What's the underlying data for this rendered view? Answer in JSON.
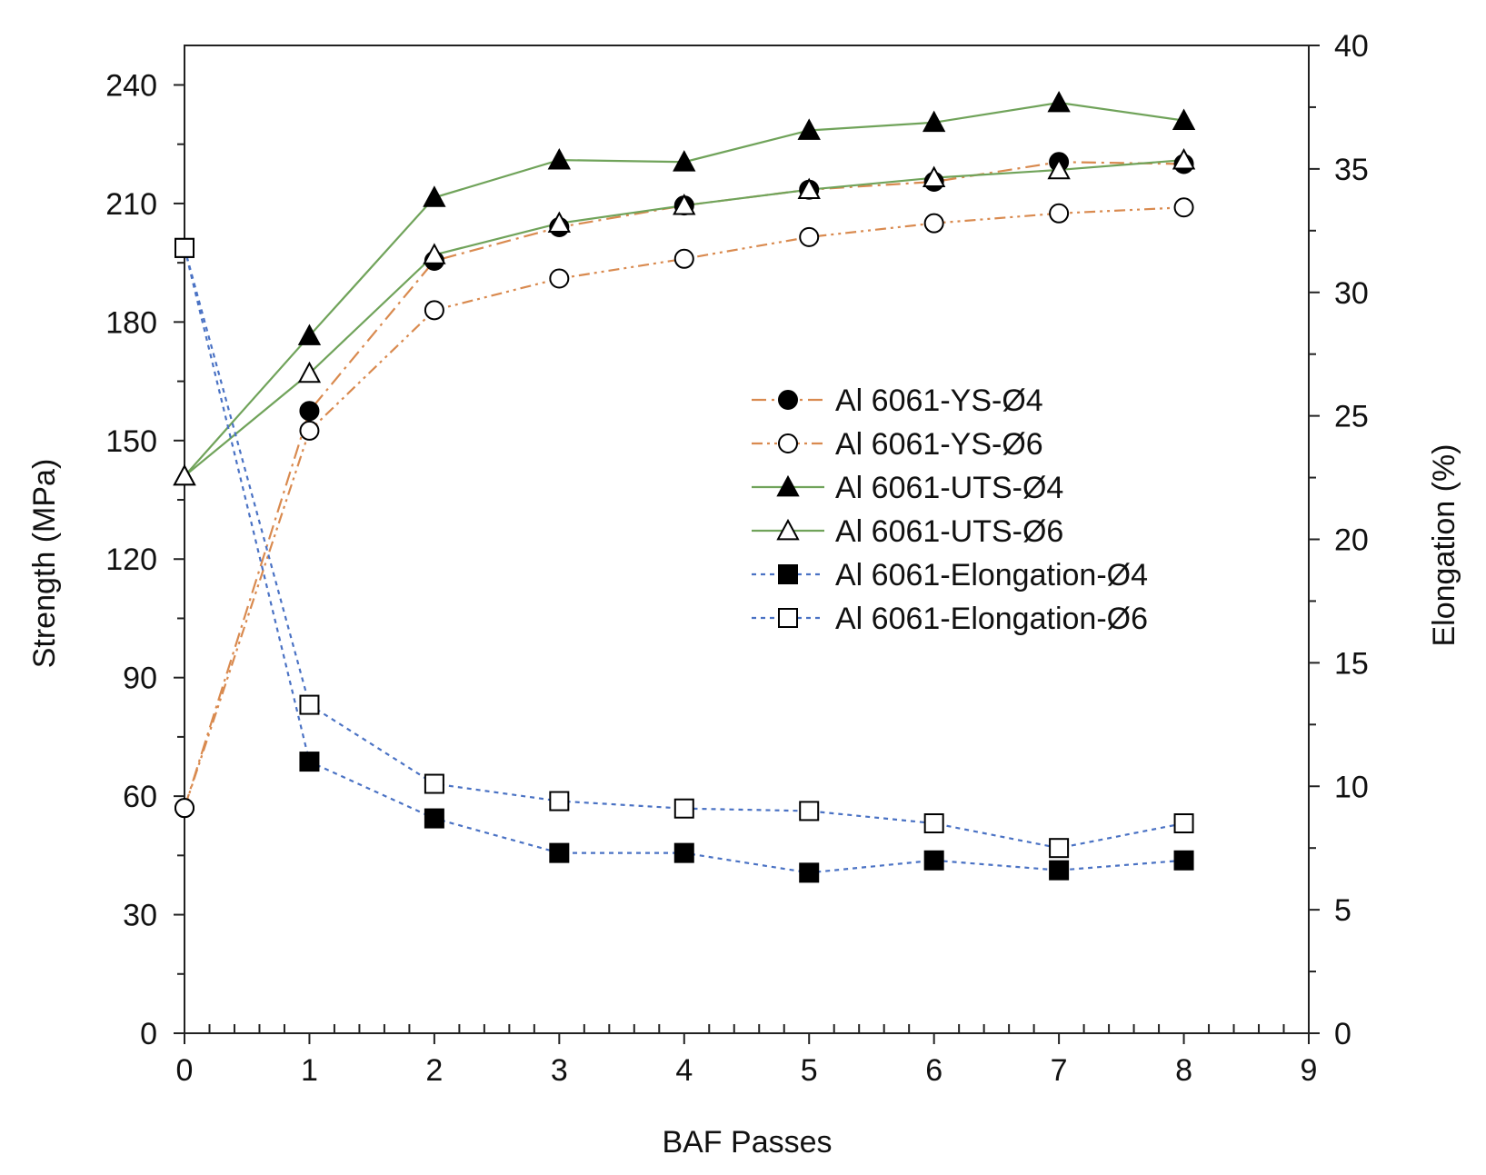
{
  "chart_data": {
    "type": "line",
    "xlabel": "BAF Passes",
    "ylabel": "Strength (MPa)",
    "y2label": "Elongation (%)",
    "xlim": [
      0,
      9
    ],
    "ylim": [
      0,
      250
    ],
    "y2lim": [
      0,
      40
    ],
    "xticks": [
      "0",
      "1",
      "2",
      "3",
      "4",
      "5",
      "6",
      "7",
      "8",
      "9"
    ],
    "yticks": [
      "0",
      "30",
      "60",
      "90",
      "120",
      "150",
      "180",
      "210",
      "240"
    ],
    "y2ticks": [
      "0",
      "5",
      "10",
      "15",
      "20",
      "25",
      "30",
      "35",
      "40"
    ],
    "grid": false,
    "legend_position": "center-right",
    "series": [
      {
        "name": "Al 6061-YS-Ø4",
        "axis": "left",
        "color": "#d98a4f",
        "dash": "dash-dot",
        "marker": "circle-filled",
        "x": [
          0,
          1,
          2,
          3,
          4,
          5,
          6,
          7,
          8
        ],
        "y": [
          57,
          157.5,
          195.5,
          204,
          209.5,
          213.5,
          215.5,
          220.5,
          220
        ]
      },
      {
        "name": "Al 6061-YS-Ø6",
        "axis": "left",
        "color": "#d98a4f",
        "dash": "dash-dot-dot",
        "marker": "circle-open",
        "x": [
          0,
          1,
          2,
          3,
          4,
          5,
          6,
          7,
          8
        ],
        "y": [
          57,
          152.5,
          183,
          191,
          196,
          201.5,
          205,
          207.5,
          209
        ]
      },
      {
        "name": "Al 6061-UTS-Ø4",
        "axis": "left",
        "color": "#70a35a",
        "dash": "solid",
        "marker": "triangle-filled",
        "x": [
          0,
          1,
          2,
          3,
          4,
          5,
          6,
          7,
          8
        ],
        "y": [
          141,
          176.5,
          211.5,
          221,
          220.5,
          228.5,
          230.5,
          235.5,
          231
        ]
      },
      {
        "name": "Al 6061-UTS-Ø6",
        "axis": "left",
        "color": "#70a35a",
        "dash": "solid",
        "marker": "triangle-open",
        "x": [
          0,
          1,
          2,
          3,
          4,
          5,
          6,
          7,
          8
        ],
        "y": [
          141,
          167,
          197,
          205,
          209.5,
          213.5,
          216.5,
          218.5,
          221
        ]
      },
      {
        "name": "Al 6061-Elongation-Ø4",
        "axis": "right",
        "color": "#4a72c4",
        "dash": "dashed",
        "marker": "square-filled",
        "x": [
          0,
          1,
          2,
          3,
          4,
          5,
          6,
          7,
          8
        ],
        "y": [
          31.8,
          11.0,
          8.7,
          7.3,
          7.3,
          6.5,
          7.0,
          6.6,
          7.0
        ]
      },
      {
        "name": "Al 6061-Elongation-Ø6",
        "axis": "right",
        "color": "#4a72c4",
        "dash": "dashed",
        "marker": "square-open",
        "x": [
          0,
          1,
          2,
          3,
          4,
          5,
          6,
          7,
          8
        ],
        "y": [
          31.8,
          13.3,
          10.1,
          9.4,
          9.1,
          9.0,
          8.5,
          7.5,
          8.5
        ]
      }
    ]
  }
}
